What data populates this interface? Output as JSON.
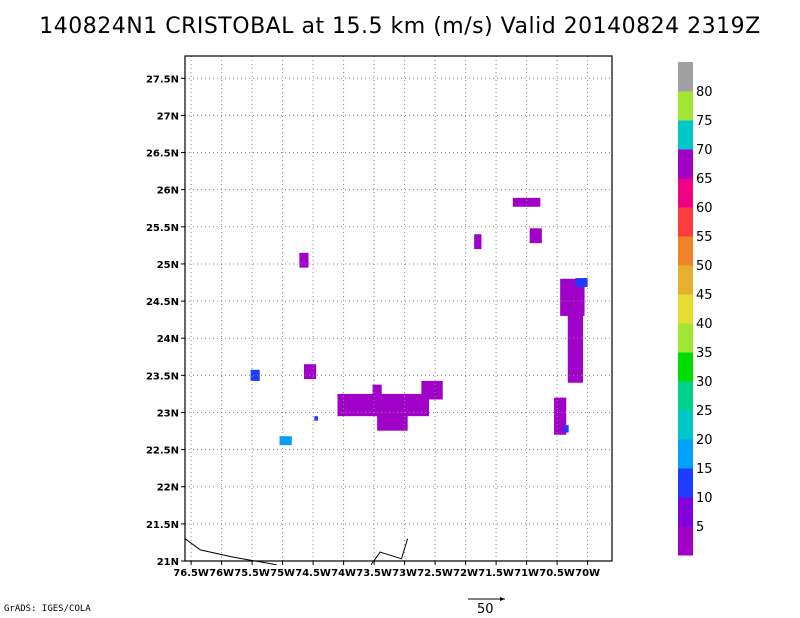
{
  "title": "140824N1 CRISTOBAL at 15.5 km (m/s) Valid 20140824 2319Z",
  "footer": "GrADS: IGES/COLA",
  "vector_scale_label": "50",
  "map": {
    "lon_ticks": [
      "76.5W",
      "76W",
      "75.5W",
      "75W",
      "74.5W",
      "74W",
      "73.5W",
      "73W",
      "72.5W",
      "72W",
      "71.5W",
      "71W",
      "70.5W",
      "70W"
    ],
    "lat_ticks": [
      "21N",
      "21.5N",
      "22N",
      "22.5N",
      "23N",
      "23.5N",
      "24N",
      "24.5N",
      "25N",
      "25.5N",
      "26N",
      "26.5N",
      "27N",
      "27.5N"
    ],
    "lon_range": [
      -76.6,
      -69.6
    ],
    "lat_range": [
      21.0,
      27.8
    ],
    "grid": true
  },
  "colorbar": {
    "labels": [
      "5",
      "10",
      "15",
      "20",
      "25",
      "30",
      "35",
      "40",
      "45",
      "50",
      "55",
      "60",
      "65",
      "70",
      "75",
      "80"
    ],
    "colors": [
      "#a000c8",
      "#8200dc",
      "#1e3cff",
      "#00a0ff",
      "#00c8c8",
      "#00d28c",
      "#00dc00",
      "#a0e632",
      "#e6dc32",
      "#e6af2d",
      "#f08228",
      "#fa3c3c",
      "#f00082",
      "#a000c8",
      "#00c8c8",
      "#a0e632",
      "#a0a0a0"
    ]
  },
  "wind_cells": [
    {
      "lon": -74.65,
      "lat": 25.05,
      "w": 0.15,
      "h": 0.2,
      "speed": 5
    },
    {
      "lon": -75.45,
      "lat": 23.5,
      "w": 0.15,
      "h": 0.15,
      "speed": 10
    },
    {
      "lon": -74.55,
      "lat": 23.55,
      "w": 0.2,
      "h": 0.2,
      "speed": 5
    },
    {
      "lon": -74.45,
      "lat": 22.92,
      "w": 0.06,
      "h": 0.06,
      "speed": 10
    },
    {
      "lon": -74.95,
      "lat": 22.62,
      "w": 0.2,
      "h": 0.12,
      "speed": 15
    },
    {
      "lon": -73.35,
      "lat": 23.1,
      "w": 1.5,
      "h": 0.3,
      "speed": 5
    },
    {
      "lon": -73.2,
      "lat": 22.88,
      "w": 0.5,
      "h": 0.25,
      "speed": 5
    },
    {
      "lon": -73.45,
      "lat": 23.3,
      "w": 0.15,
      "h": 0.15,
      "speed": 5
    },
    {
      "lon": -72.55,
      "lat": 23.3,
      "w": 0.35,
      "h": 0.25,
      "speed": 5
    },
    {
      "lon": -71.8,
      "lat": 25.3,
      "w": 0.12,
      "h": 0.2,
      "speed": 5
    },
    {
      "lon": -71.0,
      "lat": 25.83,
      "w": 0.45,
      "h": 0.12,
      "speed": 5
    },
    {
      "lon": -70.85,
      "lat": 25.38,
      "w": 0.2,
      "h": 0.2,
      "speed": 5
    },
    {
      "lon": -70.25,
      "lat": 24.55,
      "w": 0.4,
      "h": 0.5,
      "speed": 5
    },
    {
      "lon": -70.1,
      "lat": 24.75,
      "w": 0.2,
      "h": 0.12,
      "speed": 10
    },
    {
      "lon": -70.2,
      "lat": 23.9,
      "w": 0.25,
      "h": 1.0,
      "speed": 5
    },
    {
      "lon": -70.45,
      "lat": 22.95,
      "w": 0.2,
      "h": 0.5,
      "speed": 5
    },
    {
      "lon": -70.35,
      "lat": 22.78,
      "w": 0.08,
      "h": 0.1,
      "speed": 10
    }
  ],
  "coastlines": [
    [
      [
        -76.6,
        21.3
      ],
      [
        -76.35,
        21.15
      ],
      [
        -75.8,
        21.05
      ],
      [
        -75.1,
        20.95
      ]
    ],
    [
      [
        -73.55,
        20.95
      ],
      [
        -73.4,
        21.12
      ],
      [
        -73.05,
        21.03
      ],
      [
        -72.95,
        21.3
      ]
    ]
  ]
}
